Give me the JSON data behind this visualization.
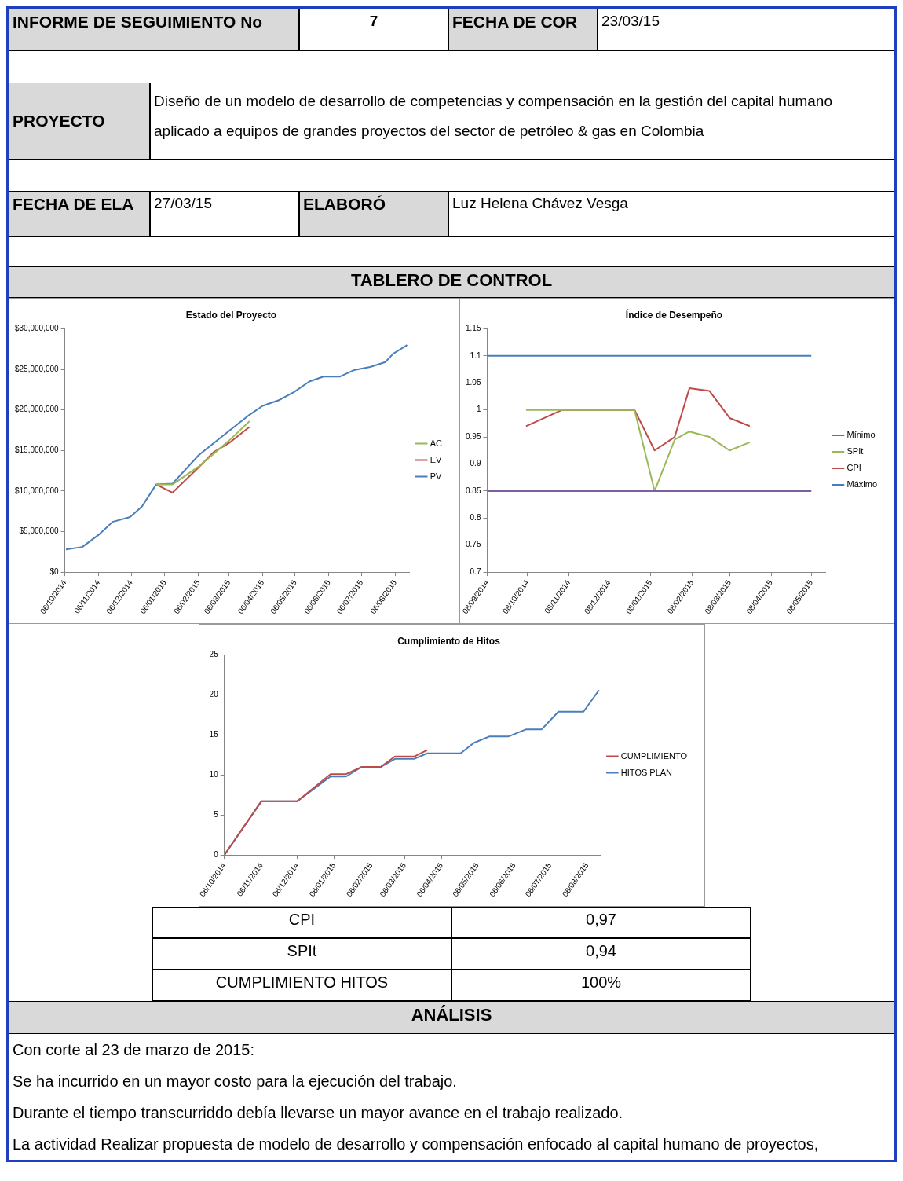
{
  "chart_data": [
    {
      "type": "other",
      "title": "TABLERO DE CONTROL",
      "annotations": [
        "INFORME DE SEGUIMIENTO No",
        "7",
        "FECHA DE COR",
        "23/03/15",
        "PROYECTO",
        "Diseño de un modelo de desarrollo de competencias y compensación en la gestión del capital humano aplicado a equipos de grandes proyectos del sector de petróleo & gas en Colombia",
        "FECHA DE ELA",
        "27/03/15",
        "ELABORÓ",
        "Luz Helena Chávez Vesga"
      ]
    },
    {
      "type": "line",
      "title": "Estado del Proyecto",
      "legend": "right",
      "grid": false,
      "xlim": [
        "2014-10-06",
        "2015-08-19"
      ],
      "xticks": [
        {
          "value": "2014-10-06",
          "label": "06/10/2014"
        },
        {
          "value": "2014-11-06",
          "label": "06/11/2014"
        },
        {
          "value": "2014-12-06",
          "label": "06/12/2014"
        },
        {
          "value": "2015-01-06",
          "label": "06/01/2015"
        },
        {
          "value": "2015-02-06",
          "label": "06/02/2015"
        },
        {
          "value": "2015-03-06",
          "label": "06/03/2015"
        },
        {
          "value": "2015-04-06",
          "label": "06/04/2015"
        },
        {
          "value": "2015-05-06",
          "label": "06/05/2015"
        },
        {
          "value": "2015-06-06",
          "label": "06/06/2015"
        },
        {
          "value": "2015-07-06",
          "label": "06/07/2015"
        },
        {
          "value": "2015-08-06",
          "label": "06/08/2015"
        }
      ],
      "ylim": [
        0,
        30000000
      ],
      "yticks": [
        {
          "value": 0,
          "label": "$0"
        },
        {
          "value": 5000000,
          "label": "$5,000,000"
        },
        {
          "value": 10000000,
          "label": "$10,000,000"
        },
        {
          "value": 15000000,
          "label": "$15,000,000"
        },
        {
          "value": 20000000,
          "label": "$20,000,000"
        },
        {
          "value": 25000000,
          "label": "$25,000,000"
        },
        {
          "value": 30000000,
          "label": "$30,000,000"
        }
      ],
      "series": [
        {
          "name": "PV",
          "color": "#4a7ebb",
          "x": [
            "2014-10-07",
            "2014-10-22",
            "2014-11-07",
            "2014-11-19",
            "2014-12-05",
            "2014-12-16",
            "2014-12-29",
            "2015-01-13",
            "2015-02-06",
            "2015-03-06",
            "2015-03-25",
            "2015-04-06",
            "2015-04-21",
            "2015-05-05",
            "2015-05-19",
            "2015-06-01",
            "2015-06-16",
            "2015-06-29",
            "2015-07-14",
            "2015-07-28",
            "2015-08-04",
            "2015-08-17"
          ],
          "values": [
            2800000,
            3100000,
            4700000,
            6200000,
            6800000,
            8100000,
            10800000,
            10900000,
            14400000,
            17400000,
            19400000,
            20500000,
            21200000,
            22200000,
            23500000,
            24100000,
            24100000,
            24900000,
            25300000,
            25900000,
            26900000,
            28000000
          ]
        },
        {
          "name": "EV",
          "color": "#be4b48",
          "x": [
            "2014-12-29",
            "2015-01-13",
            "2015-02-06",
            "2015-02-20",
            "2015-03-06",
            "2015-03-25"
          ],
          "values": [
            10800000,
            9800000,
            12900000,
            14800000,
            15900000,
            17900000
          ]
        },
        {
          "name": "AC",
          "color": "#98b954",
          "x": [
            "2014-12-29",
            "2015-01-13",
            "2015-02-06",
            "2015-03-06",
            "2015-03-25"
          ],
          "values": [
            10800000,
            10800000,
            13000000,
            16200000,
            18600000
          ]
        }
      ]
    },
    {
      "type": "line",
      "title": "Índice de Desempeño",
      "legend": "right",
      "grid": false,
      "xlim": [
        "2014-09-08",
        "2015-05-19"
      ],
      "xticks": [
        {
          "value": "2014-09-08",
          "label": "08/09/2014"
        },
        {
          "value": "2014-10-08",
          "label": "08/10/2014"
        },
        {
          "value": "2014-11-08",
          "label": "08/11/2014"
        },
        {
          "value": "2014-12-08",
          "label": "08/12/2014"
        },
        {
          "value": "2015-01-08",
          "label": "08/01/2015"
        },
        {
          "value": "2015-02-08",
          "label": "08/02/2015"
        },
        {
          "value": "2015-03-08",
          "label": "08/03/2015"
        },
        {
          "value": "2015-04-08",
          "label": "08/04/2015"
        },
        {
          "value": "2015-05-08",
          "label": "08/05/2015"
        }
      ],
      "ylim": [
        0.7,
        1.15
      ],
      "yticks": [
        0.7,
        0.75,
        0.8,
        0.85,
        0.9,
        0.95,
        1,
        1.05,
        1.1,
        1.15
      ],
      "series": [
        {
          "name": "Máximo",
          "color": "#4a7ebb",
          "x": [
            "2014-09-08",
            "2015-05-08"
          ],
          "values": [
            1.1,
            1.1
          ]
        },
        {
          "name": "CPI",
          "color": "#be4b48",
          "x": [
            "2014-10-07",
            "2014-11-03",
            "2014-12-27",
            "2015-01-11",
            "2015-01-26",
            "2015-02-06",
            "2015-02-21",
            "2015-03-08",
            "2015-03-23"
          ],
          "values": [
            0.97,
            1,
            1,
            0.925,
            0.95,
            1.04,
            1.035,
            0.985,
            0.97
          ]
        },
        {
          "name": "SPIt",
          "color": "#98b954",
          "x": [
            "2014-10-07",
            "2014-11-03",
            "2014-12-27",
            "2015-01-11",
            "2015-01-26",
            "2015-02-06",
            "2015-02-21",
            "2015-03-08",
            "2015-03-23"
          ],
          "values": [
            1,
            1,
            1,
            0.85,
            0.945,
            0.96,
            0.95,
            0.925,
            0.94
          ]
        },
        {
          "name": "Mínimo",
          "color": "#7d60a0",
          "x": [
            "2014-09-08",
            "2015-05-08"
          ],
          "values": [
            0.85,
            0.85
          ]
        }
      ]
    },
    {
      "type": "line",
      "title": "Cumplimiento de Hitos",
      "legend": "right",
      "grid": false,
      "xlim": [
        "2014-10-06",
        "2015-08-17"
      ],
      "xticks": [
        {
          "value": "2014-10-06",
          "label": "06/10/2014"
        },
        {
          "value": "2014-11-06",
          "label": "06/11/2014"
        },
        {
          "value": "2014-12-06",
          "label": "06/12/2014"
        },
        {
          "value": "2015-01-06",
          "label": "06/01/2015"
        },
        {
          "value": "2015-02-06",
          "label": "06/02/2015"
        },
        {
          "value": "2015-03-06",
          "label": "06/03/2015"
        },
        {
          "value": "2015-04-06",
          "label": "06/04/2015"
        },
        {
          "value": "2015-05-06",
          "label": "06/05/2015"
        },
        {
          "value": "2015-06-06",
          "label": "06/06/2015"
        },
        {
          "value": "2015-07-06",
          "label": "06/07/2015"
        },
        {
          "value": "2015-08-06",
          "label": "06/08/2015"
        }
      ],
      "ylim": [
        0,
        25
      ],
      "yticks": [
        0,
        5,
        10,
        15,
        20,
        25
      ],
      "series": [
        {
          "name": "HITOS PLAN",
          "color": "#4a7ebb",
          "x": [
            "2014-10-06",
            "2014-11-06",
            "2014-12-06",
            "2015-01-03",
            "2015-01-16",
            "2015-01-29",
            "2015-02-14",
            "2015-02-26",
            "2015-03-14",
            "2015-03-25",
            "2015-04-22",
            "2015-05-03",
            "2015-05-16",
            "2015-06-01",
            "2015-06-16",
            "2015-06-29",
            "2015-07-13",
            "2015-08-03",
            "2015-08-16"
          ],
          "values": [
            0,
            6.7,
            6.7,
            9.8,
            9.8,
            11,
            11,
            12,
            12,
            12.7,
            12.7,
            14,
            14.8,
            14.8,
            15.7,
            15.7,
            17.9,
            17.9,
            20.6
          ]
        },
        {
          "name": "CUMPLIMIENTO",
          "color": "#be4b48",
          "x": [
            "2014-10-06",
            "2014-11-06",
            "2014-12-06",
            "2015-01-03",
            "2015-01-16",
            "2015-01-29",
            "2015-02-14",
            "2015-02-26",
            "2015-03-14",
            "2015-03-25"
          ],
          "values": [
            0,
            6.7,
            6.7,
            10.1,
            10.1,
            11,
            11,
            12.3,
            12.3,
            13.1
          ]
        }
      ]
    },
    {
      "type": "other",
      "annotations": [
        "CPI",
        "0,97",
        "SPIt",
        "0,94",
        "CUMPLIMIENTO HITOS",
        "100%"
      ]
    },
    {
      "type": "other",
      "title": "ANÁLISIS",
      "annotations": [
        "Con corte al 23 de marzo de 2015:",
        "Se ha incurrido en un mayor costo para la ejecución del trabajo.",
        "Durante el tiempo transcurriddo debía llevarse un mayor avance en el trabajo realizado.",
        "La actividad Realizar propuesta de modelo de desarrollo y compensación enfocado al capital humano de proyectos,"
      ]
    }
  ]
}
